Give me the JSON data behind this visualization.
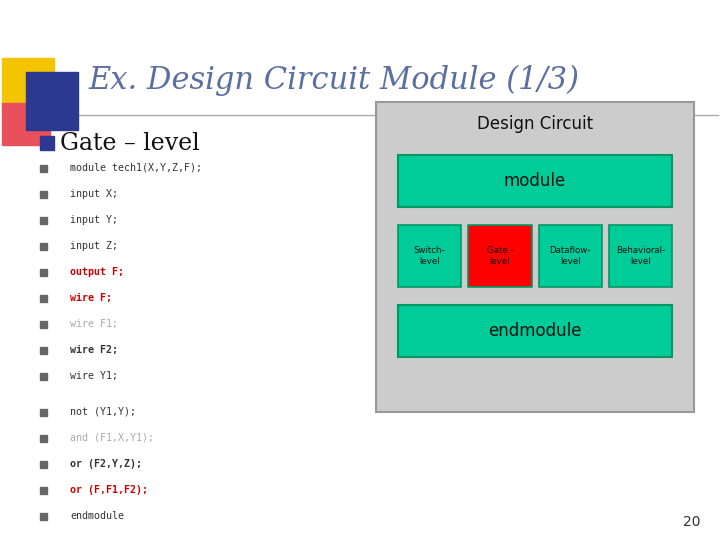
{
  "title": "Ex. Design Circuit Module (1/3)",
  "title_color": "#5B6FA0",
  "bg_color": "#FFFFFF",
  "slide_number": "20",
  "bullet_heading": "Gate – level",
  "bullet_marker_color": "#2B3990",
  "code_lines": [
    {
      "text": "module tech1(X,Y,Z,F);",
      "color": "#333333",
      "bold": false
    },
    {
      "text": "input X;",
      "color": "#333333",
      "bold": false
    },
    {
      "text": "input Y;",
      "color": "#333333",
      "bold": false
    },
    {
      "text": "input Z;",
      "color": "#333333",
      "bold": false
    },
    {
      "text": "output F;",
      "color": "#CC0000",
      "bold": true
    },
    {
      "text": "wire F;",
      "color": "#CC0000",
      "bold": true
    },
    {
      "text": "wire F1;",
      "color": "#AAAAAA",
      "bold": false
    },
    {
      "text": "wire F2;",
      "color": "#333333",
      "bold": true
    },
    {
      "text": "wire Y1;",
      "color": "#333333",
      "bold": false
    }
  ],
  "code_lines2": [
    {
      "text": "not (Y1,Y);",
      "color": "#333333",
      "bold": false
    },
    {
      "text": "and (F1,X,Y1);",
      "color": "#AAAAAA",
      "bold": false
    },
    {
      "text": "or (F2,Y,Z);",
      "color": "#333333",
      "bold": true
    },
    {
      "text": "or (F,F1,F2);",
      "color": "#CC0000",
      "bold": true
    },
    {
      "text": "endmodule",
      "color": "#333333",
      "bold": false
    }
  ],
  "diagram_bg": "#CCCCCC",
  "diagram_border": "#888888",
  "diagram_title": "Design Circuit",
  "module_box_color": "#00CC99",
  "module_box_text": "module",
  "endmodule_box_color": "#00CC99",
  "endmodule_box_text": "endmodule",
  "sub_boxes": [
    {
      "label": "Switch-\nlevel",
      "color": "#00CC99"
    },
    {
      "label": "Gate -\nlevel",
      "color": "#FF0000"
    },
    {
      "label": "Dataflow-\nlevel",
      "color": "#00CC99"
    },
    {
      "label": "Behavioral-\nlevel",
      "color": "#00CC99"
    }
  ]
}
